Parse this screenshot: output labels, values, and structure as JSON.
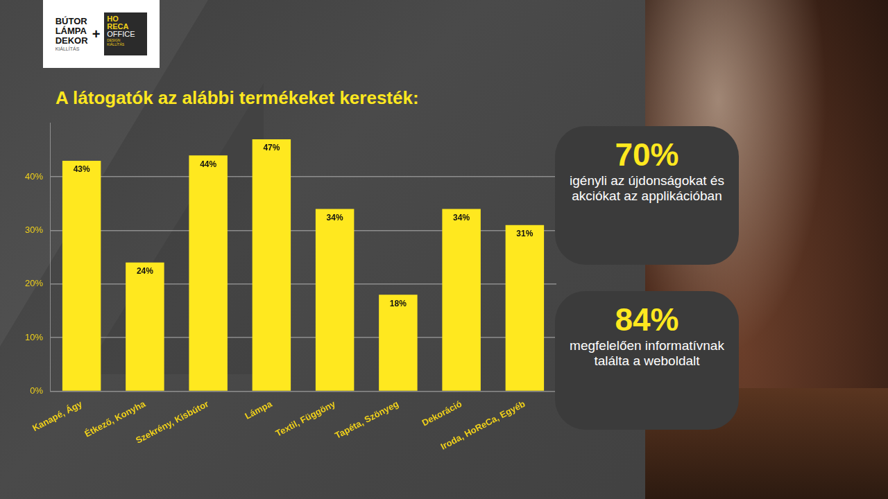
{
  "logo": {
    "left": [
      "BÚTOR",
      "LÁMPA",
      "DEKOR",
      "KIÁLLÍTÁS"
    ],
    "plus": "+",
    "right": [
      "HO",
      "RECA",
      "OFFICE",
      "DESIGN",
      "KIÁLLÍTÁS"
    ]
  },
  "callouts": [
    {
      "figure": "70%",
      "text": "igényli az újdonságokat és akciókat az applikációban"
    },
    {
      "figure": "84%",
      "text": "megfelelően informatívnak találta a weboldalt"
    }
  ],
  "chart_data": {
    "type": "bar",
    "title": "A látogatók az alábbi termékeket keresték:",
    "categories": [
      "Kanapé, Ágy",
      "Étkező, Konyha",
      "Szekrény, Kisbútor",
      "Lámpa",
      "Textil, Függöny",
      "Tapéta, Szönyeg",
      "Dekoráció",
      "Iroda, HoReCa, Egyéb"
    ],
    "values": [
      43,
      24,
      44,
      47,
      34,
      18,
      34,
      31
    ],
    "value_labels": [
      "43%",
      "24%",
      "44%",
      "47%",
      "34%",
      "18%",
      "34%",
      "31%"
    ],
    "color": "#ffe81f",
    "ylim": [
      0,
      50
    ],
    "yticks": [
      {
        "value": 0,
        "label": "0%"
      },
      {
        "value": 10,
        "label": "10%"
      },
      {
        "value": 20,
        "label": "20%"
      },
      {
        "value": 30,
        "label": "30%"
      },
      {
        "value": 40,
        "label": "40%"
      }
    ],
    "grid": true,
    "data_labels": true
  }
}
